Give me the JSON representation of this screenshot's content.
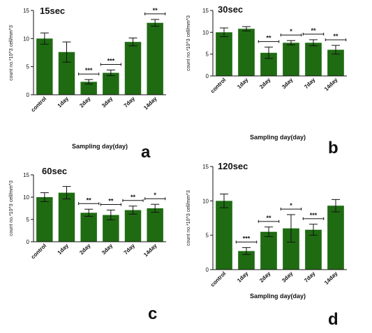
{
  "colors": {
    "bar": "#1f6b12",
    "axis": "#111111",
    "error": "#111111"
  },
  "chart_data": [
    {
      "type": "bar",
      "title": "15sec",
      "panel_letter": "a",
      "categories": [
        "control",
        "1day",
        "2day",
        "3day",
        "7day",
        "14day"
      ],
      "values": [
        10.0,
        7.6,
        2.3,
        3.9,
        9.4,
        12.8
      ],
      "errors": [
        1.0,
        1.8,
        0.4,
        0.5,
        0.7,
        0.6
      ],
      "significance": [
        "",
        "",
        "***",
        "***",
        "",
        "**"
      ],
      "xlabel": "Sampling day(day)",
      "ylabel": "count no.*10^3 cell/mm^3",
      "ylim": [
        0,
        15
      ],
      "yticks": [
        0,
        5,
        10,
        15
      ]
    },
    {
      "type": "bar",
      "title": "30sec",
      "panel_letter": "b",
      "categories": [
        "control",
        "1day",
        "2day",
        "3day",
        "7day",
        "14day"
      ],
      "values": [
        10.0,
        10.8,
        5.3,
        7.6,
        7.6,
        6.0
      ],
      "errors": [
        1.0,
        0.5,
        1.3,
        0.5,
        0.7,
        1.0
      ],
      "significance": [
        "",
        "",
        "**",
        "*",
        "**",
        "**"
      ],
      "xlabel": "Sampling day(day)",
      "ylabel": "count no.*10^3 cell/mm^3",
      "ylim": [
        0,
        15
      ],
      "yticks": [
        0,
        5,
        10,
        15
      ]
    },
    {
      "type": "bar",
      "title": "60sec",
      "panel_letter": "c",
      "categories": [
        "control",
        "1day",
        "2day",
        "3day",
        "7day",
        "14day"
      ],
      "values": [
        10.0,
        11.0,
        6.5,
        6.0,
        7.1,
        7.5
      ],
      "errors": [
        1.0,
        1.4,
        0.8,
        1.1,
        0.9,
        0.9
      ],
      "significance": [
        "",
        "",
        "**",
        "**",
        "**",
        "*"
      ],
      "xlabel": "",
      "ylabel": "count no.*10^3 cell/mm^3",
      "ylim": [
        0,
        15
      ],
      "yticks": [
        0,
        5,
        10,
        15
      ]
    },
    {
      "type": "bar",
      "title": "120sec",
      "panel_letter": "d",
      "categories": [
        "control",
        "1day",
        "2day",
        "3day",
        "7day",
        "14day"
      ],
      "values": [
        10.0,
        2.7,
        5.5,
        6.0,
        5.8,
        9.3
      ],
      "errors": [
        1.0,
        0.5,
        0.7,
        2.0,
        0.8,
        0.9
      ],
      "significance": [
        "",
        "***",
        "**",
        "*",
        "***",
        ""
      ],
      "xlabel": "Sampling day(day)",
      "ylabel": "count no.*10^3 cell/mm^3",
      "ylim": [
        0,
        15
      ],
      "yticks": [
        0,
        5,
        10,
        15
      ]
    }
  ]
}
